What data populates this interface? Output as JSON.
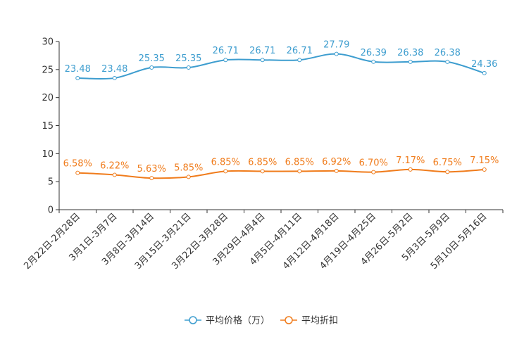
{
  "chart_data": {
    "type": "line",
    "title": "",
    "xlabel": "",
    "ylabel": "",
    "ylim": [
      0,
      30
    ],
    "yticks": [
      0,
      5,
      10,
      15,
      20,
      25,
      30
    ],
    "grid": false,
    "legend_position": "bottom",
    "categories": [
      "2月22日-2月28日",
      "3月1日-3月7日",
      "3月8日-3月14日",
      "3月15日-3月21日",
      "3月22日-3月28日",
      "3月29日-4月4日",
      "4月5日-4月11日",
      "4月12日-4月18日",
      "4月19日-4月25日",
      "4月26日-5月2日",
      "5月3日-5月9日",
      "5月10日-5月16日"
    ],
    "series": [
      {
        "name": "平均价格（万）",
        "color": "#3d9dcf",
        "values": [
          23.48,
          23.48,
          25.35,
          25.35,
          26.71,
          26.71,
          26.71,
          27.79,
          26.39,
          26.38,
          26.38,
          24.36
        ],
        "labels": [
          "23.48",
          "23.48",
          "25.35",
          "25.35",
          "26.71",
          "26.71",
          "26.71",
          "27.79",
          "26.39",
          "26.38",
          "26.38",
          "24.36"
        ]
      },
      {
        "name": "平均折扣",
        "color": "#f07c1c",
        "values": [
          6.58,
          6.22,
          5.63,
          5.85,
          6.85,
          6.85,
          6.85,
          6.92,
          6.7,
          7.17,
          6.75,
          7.15
        ],
        "labels": [
          "6.58%",
          "6.22%",
          "5.63%",
          "5.85%",
          "6.85%",
          "6.85%",
          "6.85%",
          "6.92%",
          "6.70%",
          "7.17%",
          "6.75%",
          "7.15%"
        ]
      }
    ]
  }
}
